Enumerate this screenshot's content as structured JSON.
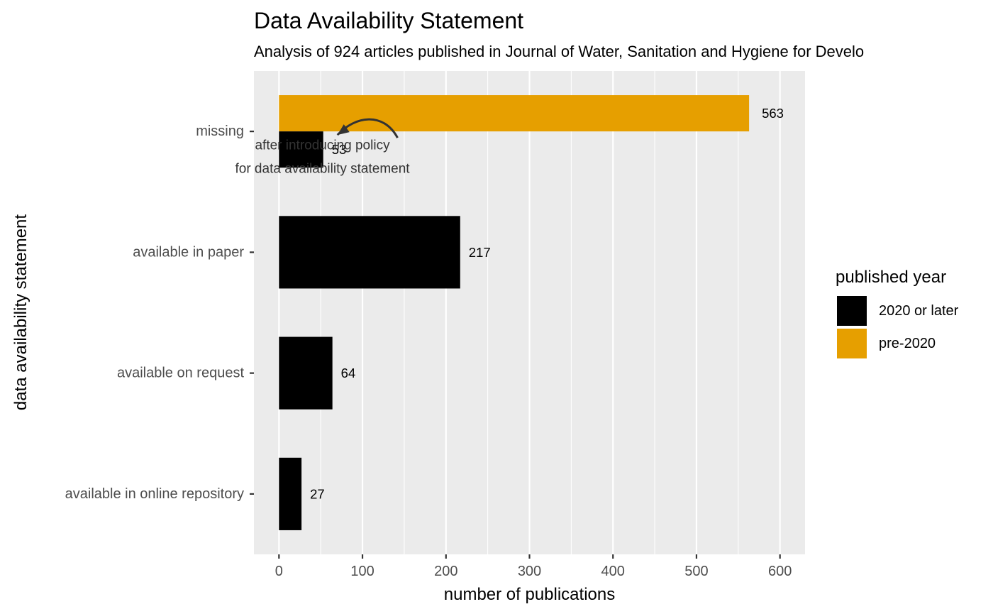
{
  "chart_data": {
    "type": "bar",
    "orientation": "horizontal",
    "title": "Data Availability Statement",
    "subtitle": "Analysis of 924 articles published in Journal of Water, Sanitation and Hygiene for Develo",
    "xlabel": "number of publications",
    "ylabel": "data availability statement",
    "xlim": [
      -30,
      630
    ],
    "x_ticks": [
      0,
      100,
      200,
      300,
      400,
      500,
      600
    ],
    "grid": true,
    "categories": [
      "missing",
      "available in paper",
      "available on request",
      "available in online repository"
    ],
    "series": [
      {
        "name": "2020 or later",
        "color": "#000000",
        "values": [
          53,
          217,
          64,
          27
        ]
      },
      {
        "name": "pre-2020",
        "color": "#E69F00",
        "values": [
          563,
          null,
          null,
          null
        ]
      }
    ],
    "legend": {
      "title": "published year",
      "position": "right",
      "entries": [
        {
          "label": "2020 or later",
          "color": "#000000"
        },
        {
          "label": "pre-2020",
          "color": "#E69F00"
        }
      ]
    },
    "annotation": {
      "lines": [
        "after introducing policy",
        "for data availability statement"
      ],
      "category": "missing",
      "arrow": true
    },
    "colors": {
      "panel_background": "#EBEBEB",
      "grid": "#FFFFFF",
      "tick_text": "#4D4D4D",
      "annotation_text": "#333333"
    }
  }
}
